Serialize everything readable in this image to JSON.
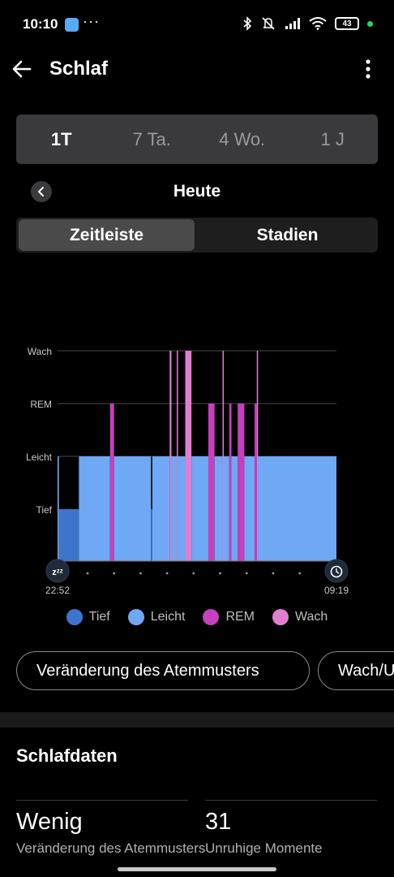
{
  "status_bar": {
    "time": "10:10",
    "dots": "···",
    "battery": "43"
  },
  "header": {
    "title": "Schlaf"
  },
  "range_tabs": [
    {
      "label": "1T",
      "active": true
    },
    {
      "label": "7 Ta.",
      "active": false
    },
    {
      "label": "4 Wo.",
      "active": false
    },
    {
      "label": "1 J",
      "active": false
    }
  ],
  "day_nav": {
    "label": "Heute"
  },
  "view_toggle": {
    "option1": "Zeitleiste",
    "option2": "Stadien",
    "selected": "Zeitleiste"
  },
  "chart_data": {
    "type": "bar",
    "y_levels": [
      "Tief",
      "Leicht",
      "REM",
      "Wach"
    ],
    "x_start": "22:52",
    "x_end": "09:19",
    "x_start_minutes": 0,
    "x_end_minutes": 627,
    "colors": {
      "Tief": "#3d74cc",
      "Leicht": "#6fa8f4",
      "REM": "#c63fbe",
      "Wach": "#e07fd1"
    },
    "segments": [
      {
        "stage": "Leicht",
        "start": 0,
        "end": 3
      },
      {
        "stage": "Tief",
        "start": 3,
        "end": 48
      },
      {
        "stage": "Leicht",
        "start": 48,
        "end": 118
      },
      {
        "stage": "REM",
        "start": 118,
        "end": 127
      },
      {
        "stage": "Leicht",
        "start": 127,
        "end": 210
      },
      {
        "stage": "Tief",
        "start": 210,
        "end": 213
      },
      {
        "stage": "Leicht",
        "start": 213,
        "end": 252
      },
      {
        "stage": "Wach",
        "start": 252,
        "end": 256
      },
      {
        "stage": "Leicht",
        "start": 256,
        "end": 268
      },
      {
        "stage": "Wach",
        "start": 268,
        "end": 270
      },
      {
        "stage": "Leicht",
        "start": 270,
        "end": 287
      },
      {
        "stage": "Wach",
        "start": 287,
        "end": 301
      },
      {
        "stage": "Leicht",
        "start": 301,
        "end": 339
      },
      {
        "stage": "REM",
        "start": 339,
        "end": 353
      },
      {
        "stage": "Leicht",
        "start": 353,
        "end": 371
      },
      {
        "stage": "Wach",
        "start": 371,
        "end": 373
      },
      {
        "stage": "Leicht",
        "start": 373,
        "end": 386
      },
      {
        "stage": "REM",
        "start": 386,
        "end": 391
      },
      {
        "stage": "Leicht",
        "start": 391,
        "end": 405
      },
      {
        "stage": "REM",
        "start": 405,
        "end": 420
      },
      {
        "stage": "Leicht",
        "start": 420,
        "end": 443
      },
      {
        "stage": "REM",
        "start": 443,
        "end": 448
      },
      {
        "stage": "Wach",
        "start": 448,
        "end": 450
      },
      {
        "stage": "Leicht",
        "start": 450,
        "end": 627
      }
    ]
  },
  "legend": [
    {
      "label": "Tief",
      "color": "#3d74cc"
    },
    {
      "label": "Leicht",
      "color": "#6fa8f4"
    },
    {
      "label": "REM",
      "color": "#c63fbe"
    },
    {
      "label": "Wach",
      "color": "#e07fd1"
    }
  ],
  "chips": [
    {
      "label": "Veränderung des Atemmusters"
    },
    {
      "label": "Wach/Unruhig"
    }
  ],
  "section": {
    "title": "Schlafdaten"
  },
  "stats": [
    {
      "value": "Wenig",
      "label": "Veränderung des Atemmusters"
    },
    {
      "value": "31",
      "label": "Unruhige Momente"
    }
  ]
}
